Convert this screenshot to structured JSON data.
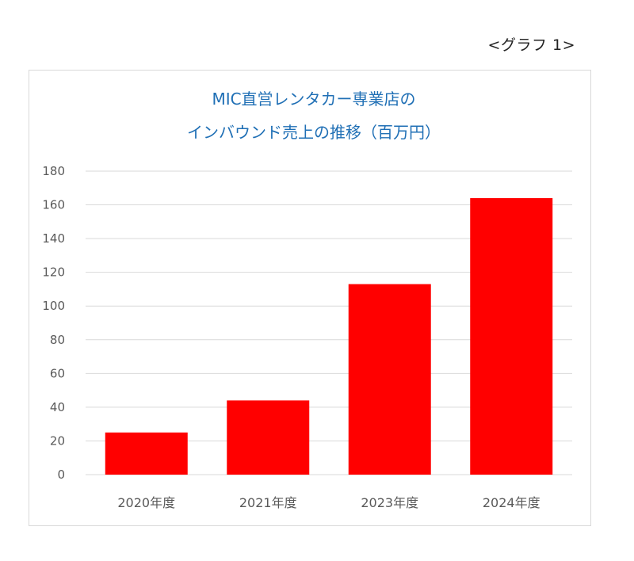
{
  "figure_label": "<グラフ 1>",
  "chart_data": {
    "type": "bar",
    "title": [
      "MIC直営レンタカー専業店の",
      "インバウンド売上の推移（百万円）"
    ],
    "categories": [
      "2020年度",
      "2021年度",
      "2023年度",
      "2024年度"
    ],
    "values": [
      25,
      44,
      113,
      164
    ],
    "ylim": [
      0,
      180
    ],
    "yticks": [
      0,
      20,
      40,
      60,
      80,
      100,
      120,
      140,
      160,
      180
    ],
    "grid": true,
    "colors": {
      "bar": "#ff0000",
      "grid": "#d9d9d9",
      "title": "#1f6fb5",
      "tick": "#595959"
    }
  }
}
